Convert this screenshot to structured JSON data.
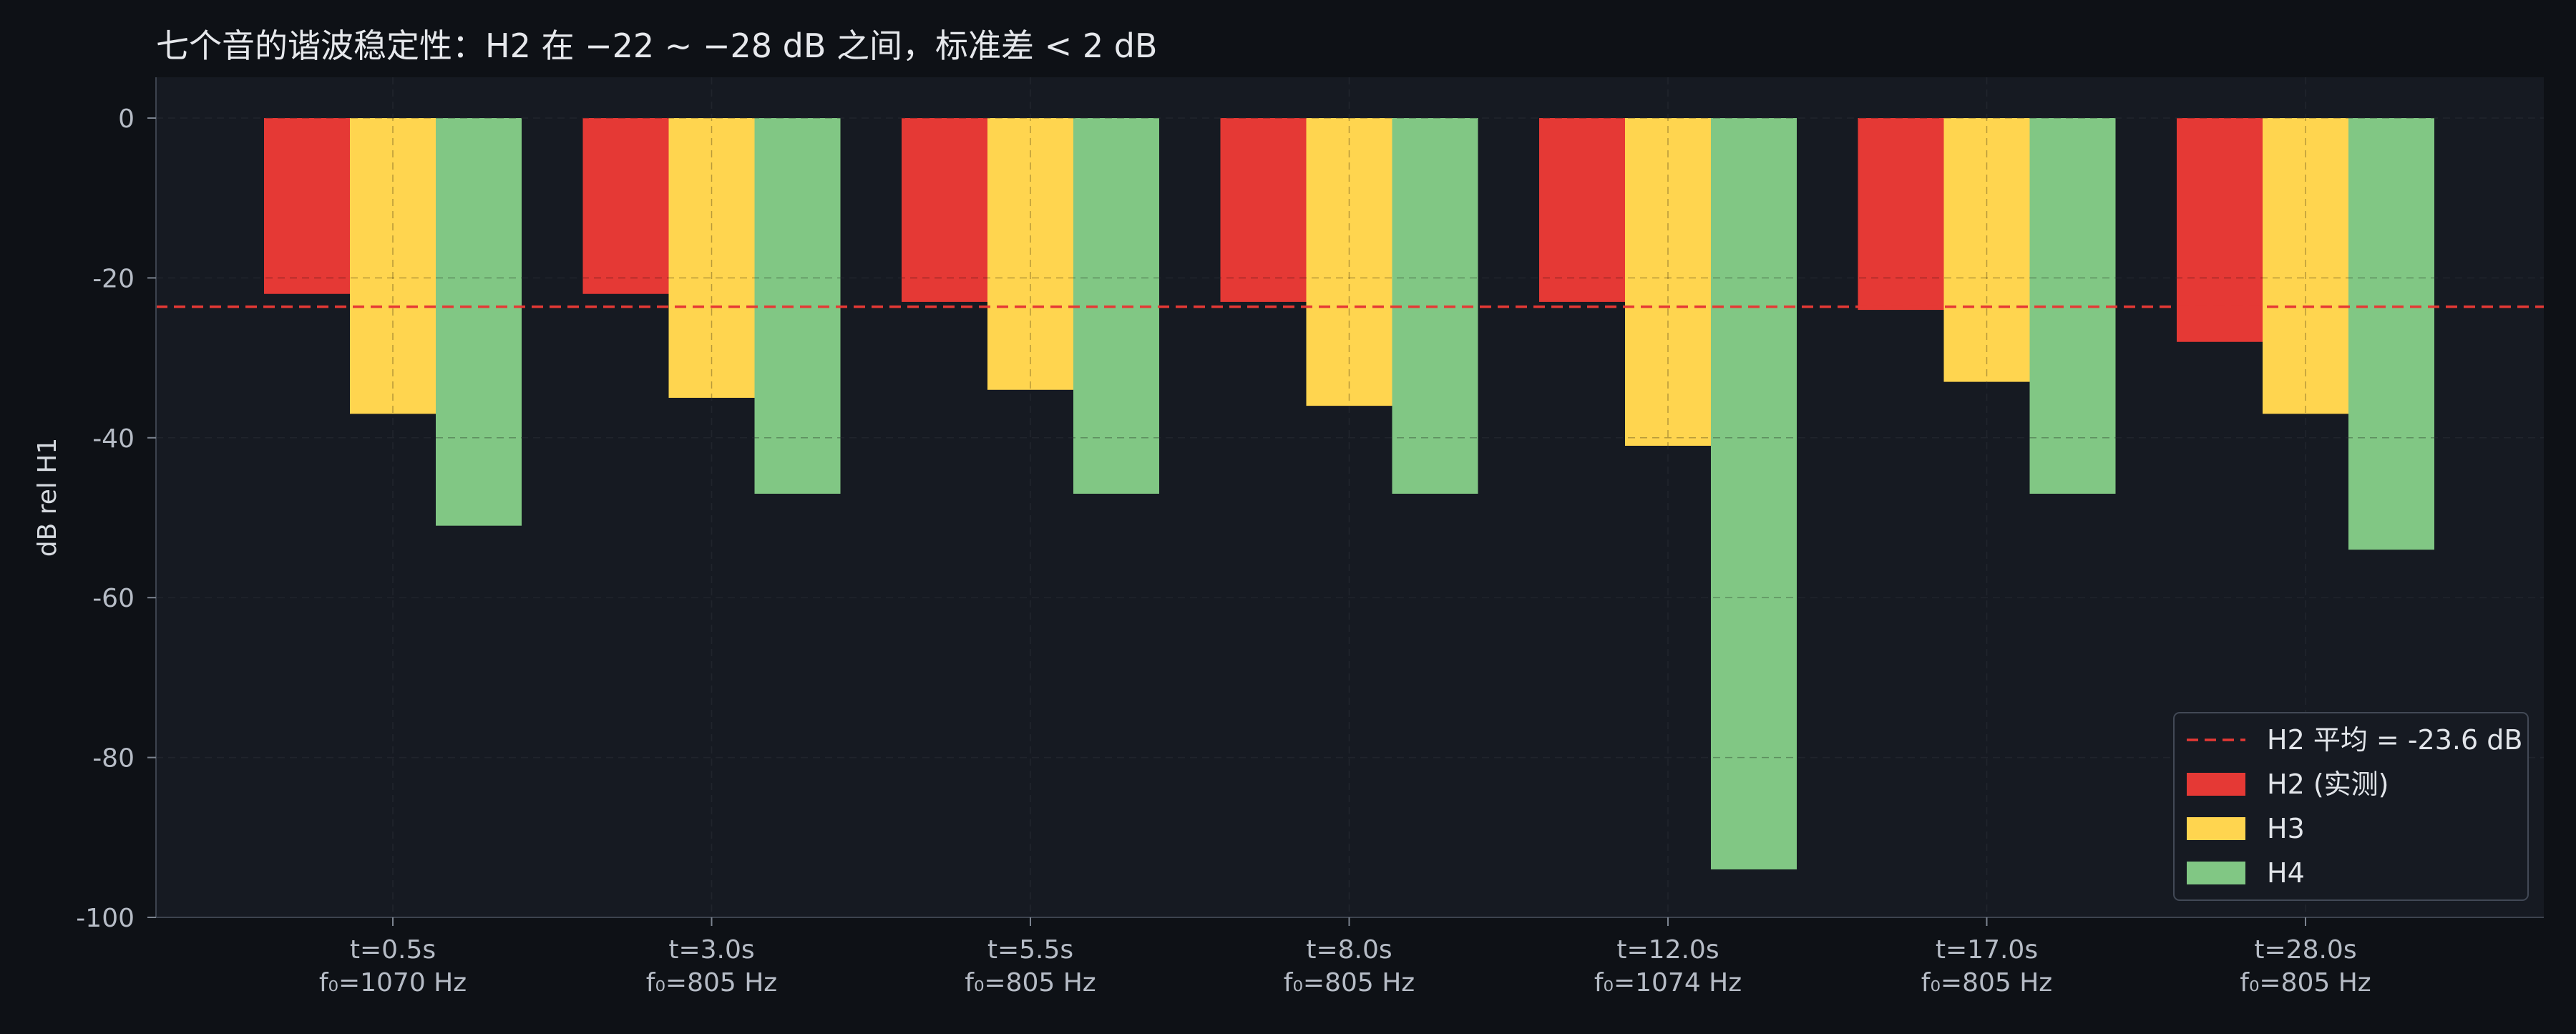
{
  "chart_data": {
    "type": "bar",
    "title": "七个音的谐波稳定性：H2 在 −22 ~ −28 dB 之间，标准差 < 2 dB",
    "xlabel": "",
    "ylabel": "dB rel H1",
    "ylim": [
      -100,
      0
    ],
    "yticks": [
      "0",
      "-20",
      "-40",
      "-60",
      "-80",
      "-100"
    ],
    "ytick_values": [
      0,
      -20,
      -40,
      -60,
      -80,
      -100
    ],
    "grid": true,
    "legend_position": "bottom-right",
    "categories": [
      [
        "t=0.5s",
        "f₀=1070 Hz"
      ],
      [
        "t=3.0s",
        "f₀=805 Hz"
      ],
      [
        "t=5.5s",
        "f₀=805 Hz"
      ],
      [
        "t=8.0s",
        "f₀=805 Hz"
      ],
      [
        "t=12.0s",
        "f₀=1074 Hz"
      ],
      [
        "t=17.0s",
        "f₀=805 Hz"
      ],
      [
        "t=28.0s",
        "f₀=805 Hz"
      ]
    ],
    "series": [
      {
        "name": "H2 (实测)",
        "color": "#e53935",
        "values": [
          -22,
          -22,
          -23,
          -23,
          -23,
          -24,
          -28
        ]
      },
      {
        "name": "H3",
        "color": "#ffd54f",
        "values": [
          -37,
          -35,
          -34,
          -36,
          -41,
          -33,
          -37
        ]
      },
      {
        "name": "H4",
        "color": "#81c784",
        "values": [
          -51,
          -47,
          -47,
          -47,
          -94,
          -47,
          -54
        ]
      }
    ],
    "reference_line": {
      "label": "H2 平均 = -23.6 dB",
      "value": -23.6,
      "color": "#e53935"
    }
  }
}
